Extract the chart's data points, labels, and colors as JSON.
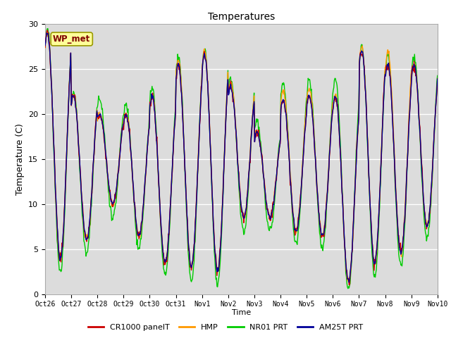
{
  "title": "Temperatures",
  "ylabel": "Temperature (C)",
  "xlabel": "Time",
  "ylim": [
    0,
    30
  ],
  "yticks": [
    0,
    5,
    10,
    15,
    20,
    25,
    30
  ],
  "plot_bg": "#dcdcdc",
  "fig_bg": "#ffffff",
  "series": {
    "CR1000 panelT": {
      "color": "#cc0000",
      "lw": 1.0
    },
    "HMP": {
      "color": "#ff9900",
      "lw": 1.0
    },
    "NR01 PRT": {
      "color": "#00cc00",
      "lw": 1.0
    },
    "AM25T PRT": {
      "color": "#000099",
      "lw": 1.0
    }
  },
  "xtick_labels": [
    "Oct 26",
    "Oct 27",
    "Oct 28",
    "Oct 29",
    "Oct 30",
    "Oct 31",
    "Nov 1",
    "Nov 2",
    "Nov 3",
    "Nov 4",
    "Nov 5",
    "Nov 6",
    "Nov 7",
    "Nov 8",
    "Nov 9",
    "Nov 10"
  ],
  "station_label": "WP_met",
  "station_label_fg": "#800000",
  "station_label_bg": "#ffff99",
  "station_label_border": "#999900",
  "day_peaks_base": [
    29,
    22,
    20,
    20,
    22,
    25.5,
    26.5,
    23,
    18,
    21.5,
    22,
    22,
    27,
    25.5,
    25.5
  ],
  "day_mins_base": [
    4,
    6,
    10,
    6.5,
    3.5,
    3,
    2.5,
    8.5,
    8.5,
    7,
    6.5,
    1.5,
    3.5,
    4.5,
    7.5
  ],
  "nr01_extra_peak": [
    0.5,
    0.5,
    1.5,
    1.2,
    1.0,
    0.8,
    0.8,
    0.8,
    1.0,
    2.0,
    1.8,
    2.0,
    0.5,
    1.0,
    0.8
  ],
  "hmp_extra_peak": [
    0,
    0,
    0,
    0,
    0,
    0.5,
    0.5,
    0.5,
    0,
    1.0,
    0.8,
    0,
    0.5,
    1.5,
    0
  ],
  "n_days": 15,
  "n_per_day": 48
}
